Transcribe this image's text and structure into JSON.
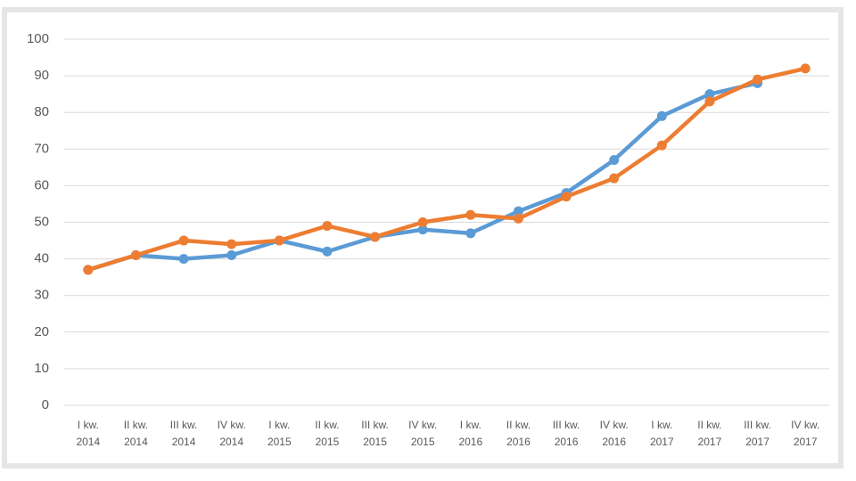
{
  "chart_data": {
    "type": "line",
    "categories": [
      "I kw. 2014",
      "II kw. 2014",
      "III kw. 2014",
      "IV kw. 2014",
      "I kw. 2015",
      "II kw. 2015",
      "III kw. 2015",
      "IV kw. 2015",
      "I kw. 2016",
      "II kw. 2016",
      "III kw. 2016",
      "IV kw. 2016",
      "I kw. 2017",
      "II kw. 2017",
      "III kw. 2017",
      "IV kw. 2017"
    ],
    "series": [
      {
        "color": "#5b9bd5",
        "values": [
          37,
          41,
          40,
          41,
          45,
          42,
          46,
          48,
          47,
          53,
          58,
          67,
          79,
          85,
          88,
          null
        ]
      },
      {
        "color": "#ed7d31",
        "values": [
          37,
          41,
          45,
          44,
          45,
          49,
          46,
          50,
          52,
          51,
          57,
          62,
          71,
          83,
          89,
          92
        ]
      }
    ],
    "ylim": [
      0,
      100
    ],
    "yticks": [
      0,
      10,
      20,
      30,
      40,
      50,
      60,
      70,
      80,
      90,
      100
    ],
    "grid": true
  }
}
